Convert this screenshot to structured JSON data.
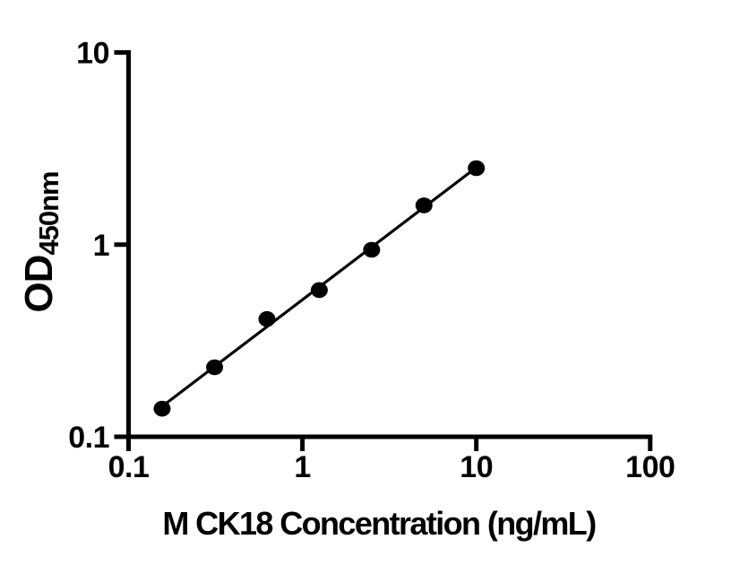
{
  "figure": {
    "background": "#ffffff"
  },
  "chart_data": {
    "type": "scatter",
    "title": "",
    "xlabel": "M CK18 Concentration (ng/mL)",
    "ylabel": "OD450nm",
    "ylabel_main": "OD",
    "ylabel_sub": "450nm",
    "x_scale": "log",
    "y_scale": "log",
    "xlim": [
      0.1,
      100
    ],
    "ylim": [
      0.1,
      10
    ],
    "x": [
      0.156,
      0.3125,
      0.625,
      1.25,
      2.5,
      5,
      10
    ],
    "y": [
      0.14,
      0.23,
      0.41,
      0.58,
      0.94,
      1.6,
      2.5
    ],
    "x_ticks": [
      {
        "v": 0.1,
        "label": "0.1"
      },
      {
        "v": 1,
        "label": "1"
      },
      {
        "v": 10,
        "label": "10"
      },
      {
        "v": 100,
        "label": "100"
      }
    ],
    "y_ticks": [
      {
        "v": 0.1,
        "label": "0.1"
      },
      {
        "v": 1,
        "label": "1"
      },
      {
        "v": 10,
        "label": "10"
      }
    ],
    "trend_line": "linear-fit-loglog",
    "grid": false,
    "legend": null,
    "marker": {
      "shape": "circle",
      "color": "#000000"
    },
    "line_color": "#000000",
    "axis_color": "#000000"
  }
}
